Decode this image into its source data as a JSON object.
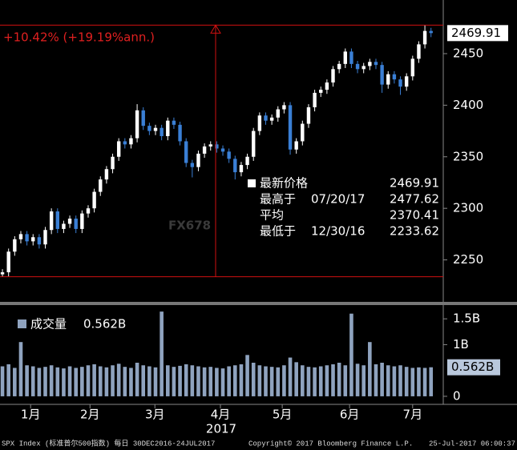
{
  "chart_data": [
    {
      "type": "candlestick",
      "annotation": "+10.42% (+19.19%ann.)",
      "last_label": "2469.91",
      "watermark": "FX678",
      "stats": {
        "last": {
          "label": "最新价格",
          "value": 2469.91
        },
        "high": {
          "label": "最高于",
          "date": "07/20/17",
          "value": 2477.62
        },
        "avg": {
          "label": "平均",
          "value": 2370.41
        },
        "low": {
          "label": "最低于",
          "date": "12/30/16",
          "value": 2233.62
        }
      },
      "up_color": "#ffffff",
      "down_color": "#3a7fd5",
      "ylim": [
        2209.3,
        2502
      ],
      "yticks": [
        2250,
        2300,
        2350,
        2400,
        2450
      ],
      "xlim": [
        -0.4,
        72
      ],
      "xticks": [
        {
          "value": 4.6,
          "label": "1月"
        },
        {
          "value": 14.3,
          "label": "2月"
        },
        {
          "value": 24.9,
          "label": "3月"
        },
        {
          "value": 35.6,
          "label": "4月"
        },
        {
          "value": 45.7,
          "label": "5月"
        },
        {
          "value": 56.7,
          "label": "6月"
        },
        {
          "value": 67,
          "label": "7月"
        }
      ],
      "year_label": "2017",
      "open": [
        2236,
        2238,
        2258,
        2270,
        2275,
        2268,
        2272,
        2265,
        2279,
        2297,
        2280,
        2285,
        2290,
        2280,
        2295,
        2300,
        2316,
        2328,
        2338,
        2350,
        2365,
        2362,
        2368,
        2395,
        2380,
        2375,
        2378,
        2370,
        2385,
        2381,
        2365,
        2344,
        2340,
        2353,
        2360,
        2362,
        2358,
        2355,
        2348,
        2335,
        2342,
        2350,
        2375,
        2390,
        2385,
        2388,
        2396,
        2400,
        2357,
        2365,
        2382,
        2398,
        2412,
        2415,
        2422,
        2435,
        2440,
        2452,
        2440,
        2435,
        2438,
        2442,
        2439,
        2420,
        2430,
        2425,
        2418,
        2428,
        2445,
        2459,
        2472
      ],
      "high": [
        2241,
        2261,
        2273,
        2278,
        2278,
        2275,
        2275,
        2282,
        2300,
        2300,
        2288,
        2293,
        2293,
        2298,
        2303,
        2319,
        2331,
        2341,
        2353,
        2368,
        2368,
        2371,
        2401,
        2398,
        2383,
        2381,
        2381,
        2388,
        2388,
        2384,
        2368,
        2347,
        2356,
        2363,
        2365,
        2365,
        2361,
        2358,
        2351,
        2345,
        2353,
        2378,
        2393,
        2393,
        2391,
        2399,
        2403,
        2403,
        2368,
        2385,
        2401,
        2415,
        2418,
        2425,
        2438,
        2443,
        2455,
        2455,
        2443,
        2441,
        2445,
        2445,
        2442,
        2433,
        2433,
        2428,
        2431,
        2448,
        2462,
        2477.62,
        2475
      ],
      "low": [
        2233.62,
        2234,
        2254,
        2266,
        2264,
        2264,
        2261,
        2261,
        2275,
        2276,
        2276,
        2281,
        2276,
        2276,
        2291,
        2296,
        2312,
        2324,
        2334,
        2346,
        2358,
        2358,
        2364,
        2376,
        2371,
        2371,
        2366,
        2366,
        2377,
        2361,
        2340,
        2330,
        2336,
        2349,
        2356,
        2354,
        2351,
        2344,
        2328,
        2331,
        2338,
        2346,
        2371,
        2381,
        2381,
        2384,
        2392,
        2352,
        2353,
        2361,
        2378,
        2394,
        2408,
        2411,
        2418,
        2431,
        2436,
        2436,
        2431,
        2431,
        2434,
        2435,
        2412,
        2416,
        2421,
        2410,
        2414,
        2424,
        2441,
        2455,
        2466
      ],
      "close": [
        2238,
        2258,
        2270,
        2275,
        2268,
        2272,
        2265,
        2279,
        2297,
        2280,
        2285,
        2290,
        2280,
        2295,
        2300,
        2316,
        2328,
        2338,
        2350,
        2365,
        2362,
        2368,
        2395,
        2380,
        2375,
        2378,
        2370,
        2385,
        2381,
        2365,
        2344,
        2340,
        2353,
        2360,
        2362,
        2358,
        2355,
        2348,
        2335,
        2342,
        2350,
        2375,
        2390,
        2385,
        2388,
        2396,
        2400,
        2357,
        2365,
        2382,
        2398,
        2412,
        2415,
        2422,
        2435,
        2440,
        2452,
        2440,
        2435,
        2438,
        2442,
        2439,
        2420,
        2430,
        2425,
        2418,
        2428,
        2445,
        2459,
        2472,
        2469.91
      ]
    },
    {
      "type": "bar",
      "legend": "成交量",
      "current": 0.562,
      "current_label": "0.562B",
      "color": "#8fa3bf",
      "ylim": [
        -0.156,
        1.766
      ],
      "yticks": [
        0,
        {
          "value": 1,
          "label": "1B"
        },
        {
          "value": 1.5,
          "label": "1.5B"
        }
      ],
      "values": [
        0.58,
        0.62,
        0.55,
        1.05,
        0.6,
        0.58,
        0.55,
        0.57,
        0.6,
        0.56,
        0.54,
        0.58,
        0.55,
        0.57,
        0.6,
        0.62,
        0.58,
        0.56,
        0.6,
        0.63,
        0.57,
        0.55,
        0.65,
        0.6,
        0.58,
        0.56,
        1.64,
        0.6,
        0.57,
        0.59,
        0.62,
        0.6,
        0.58,
        0.56,
        0.57,
        0.55,
        0.54,
        0.58,
        0.6,
        0.62,
        0.8,
        0.65,
        0.6,
        0.58,
        0.57,
        0.56,
        0.6,
        0.75,
        0.66,
        0.6,
        0.57,
        0.56,
        0.58,
        0.6,
        0.62,
        0.65,
        0.6,
        1.6,
        0.63,
        0.6,
        1.05,
        0.62,
        0.65,
        0.6,
        0.58,
        0.6,
        0.57,
        0.55,
        0.56,
        0.55,
        0.562
      ]
    },
    {
      "type": "footer",
      "left": "SPX Index (标准普尔500指数)  每日 30DEC2016-24JUL2017",
      "center": "Copyright© 2017 Bloomberg Finance L.P.",
      "right": "25-Jul-2017 06:00:37"
    }
  ]
}
